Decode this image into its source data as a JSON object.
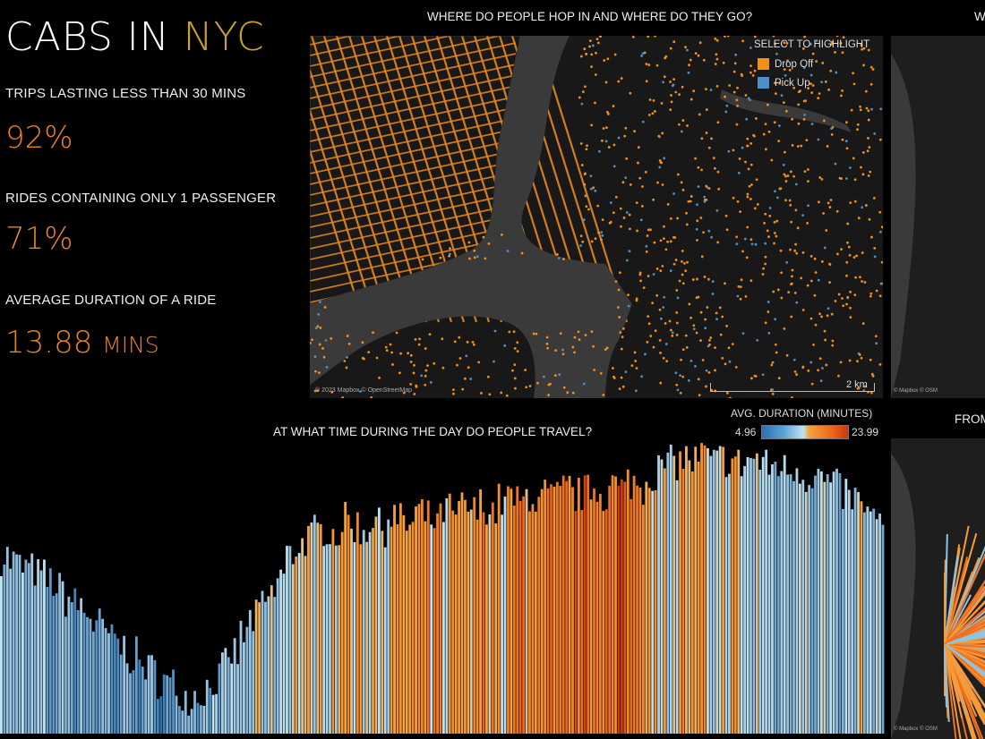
{
  "header": {
    "title_main": "CABS IN",
    "title_accent": "NYC"
  },
  "stats": [
    {
      "label": "TRIPS LASTING LESS THAN 30 MINS",
      "value": "92%"
    },
    {
      "label": "RIDES CONTAINING ONLY 1 PASSENGER",
      "value": "71%"
    },
    {
      "label": "AVERAGE DURATION OF A RIDE",
      "value": "13.88",
      "unit": "MINS"
    }
  ],
  "map_main": {
    "title": "WHERE DO PEOPLE HOP IN AND WHERE DO THEY GO?",
    "legend_title": "SELECT TO HIGHLIGHT",
    "legend": [
      {
        "label": "Drop Off",
        "color": "#f28e1c"
      },
      {
        "label": "Pick Up",
        "color": "#4e8fc7"
      }
    ],
    "attribution": "© 2023 Mapbox © OpenStreetMap",
    "scale_label": "2 km"
  },
  "map_right_top": {
    "title": "W",
    "attribution": "© Mapbox © OSM"
  },
  "map_right_bottom": {
    "title": "FROM",
    "attribution": "© Mapbox © OSM"
  },
  "colors": {
    "accent_gold": "#c9a227",
    "accent_orange": "#e8821e",
    "low": "#2c6fb0",
    "mid": "#bfe3f3",
    "high": "#c9390c"
  },
  "chart_data": {
    "type": "bar",
    "title": "AT WHAT TIME DURING THE DAY DO PEOPLE TRAVEL?",
    "color_legend_title": "AVG. DURATION (MINUTES)",
    "color_min_label": "4.96",
    "color_max_label": "23.99",
    "color_range": [
      4.96,
      23.99
    ],
    "ylim": [
      0,
      100
    ],
    "grid": false,
    "values": [
      62,
      60,
      58,
      57,
      55,
      53,
      50,
      47,
      45,
      42,
      38,
      35,
      32,
      30,
      27,
      24,
      22,
      19,
      17,
      15,
      13,
      14,
      16,
      19,
      23,
      28,
      34,
      40,
      44,
      48,
      55,
      62,
      66,
      68,
      70,
      72,
      70,
      74,
      73,
      71,
      75,
      72,
      76,
      74,
      73,
      77,
      75,
      74,
      78,
      76,
      79,
      77,
      80,
      78,
      81,
      82,
      80,
      84,
      81,
      83,
      82,
      85,
      83,
      84,
      86,
      84,
      87,
      85,
      88,
      86,
      90,
      92,
      94,
      95,
      96,
      95,
      97,
      94,
      96,
      95,
      94,
      96,
      95,
      93,
      94,
      92,
      93,
      90,
      91,
      88,
      86,
      84,
      82,
      80,
      76,
      72
    ],
    "avg_duration": [
      11,
      10,
      12,
      10,
      11,
      9,
      10,
      11,
      9,
      10,
      9,
      10,
      8,
      9,
      10,
      8,
      9,
      8,
      9,
      8,
      8,
      9,
      10,
      11,
      10,
      12,
      11,
      12,
      13,
      12,
      13,
      14,
      15,
      13,
      14,
      15,
      14,
      16,
      15,
      14,
      15,
      16,
      14,
      15,
      16,
      15,
      16,
      17,
      15,
      16,
      17,
      16,
      18,
      17,
      16,
      18,
      19,
      17,
      18,
      20,
      19,
      18,
      20,
      21,
      19,
      20,
      18,
      21,
      19,
      20,
      16,
      15,
      14,
      15,
      16,
      14,
      15,
      13,
      14,
      15,
      13,
      12,
      13,
      12,
      11,
      12,
      13,
      12,
      11,
      12,
      12,
      11,
      12,
      13,
      12,
      11
    ]
  }
}
